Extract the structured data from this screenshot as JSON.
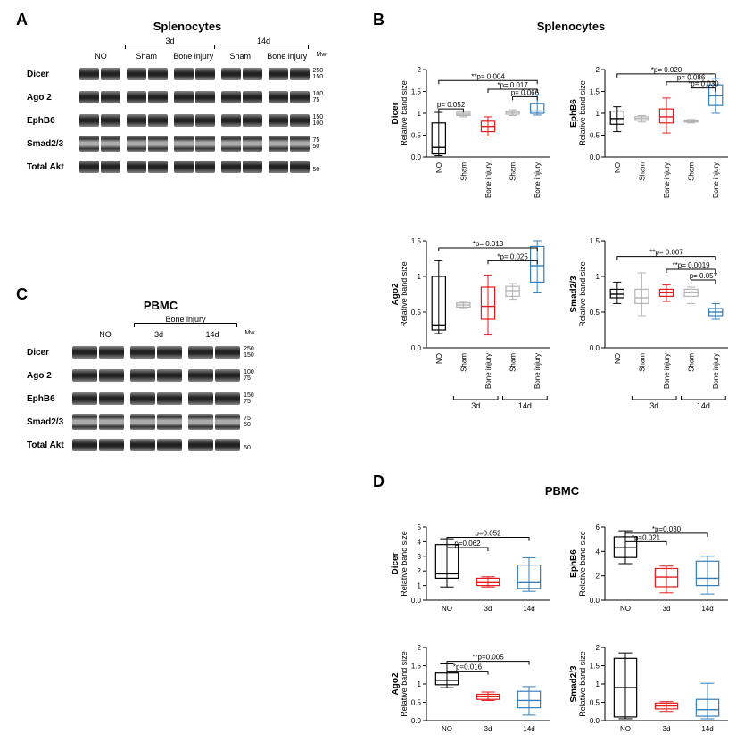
{
  "labels": {
    "A": "A",
    "B": "B",
    "C": "C",
    "D": "D"
  },
  "titles": {
    "splenocytes": "Splenocytes",
    "pbmc": "PBMC"
  },
  "proteins": [
    "Dicer",
    "Ago 2",
    "EphB6",
    "Smad2/3",
    "Total Akt"
  ],
  "panelA": {
    "topGroups": [
      "3d",
      "14d"
    ],
    "cols": [
      "NO",
      "Sham",
      "Bone injury",
      "Sham",
      "Bone injury"
    ],
    "mwLabel": "Mw",
    "mw": [
      [
        "250",
        "150"
      ],
      [
        "100",
        "75"
      ],
      [
        "150",
        "100"
      ],
      [
        "75",
        "50"
      ],
      [
        "",
        "50"
      ]
    ]
  },
  "panelC": {
    "title_sub": "Bone injury",
    "cols": [
      "NO",
      "3d",
      "14d"
    ],
    "mwLabel": "Mw",
    "mw": [
      [
        "250",
        "150"
      ],
      [
        "100",
        "75"
      ],
      [
        "150",
        "75"
      ],
      [
        "75",
        "50"
      ],
      [
        "",
        "50"
      ]
    ]
  },
  "colors": {
    "NO": "#000000",
    "Sham": "#b3b3b3",
    "Bone3d": "#e41a1c",
    "Bone14d": "#377eb8",
    "D_NO": "#000000",
    "D_3d": "#e41a1c",
    "D_14d": "#377eb8"
  },
  "panelB": {
    "xCats": [
      "NO",
      "Sham",
      "Bone injury",
      "Sham",
      "Bone injury"
    ],
    "xGroups": [
      "3d",
      "14d"
    ],
    "charts": {
      "Dicer": {
        "ylabel": "Dicer",
        "ysub": "Relative band size",
        "ylim": [
          0,
          2.0
        ],
        "yticks": [
          0,
          0.5,
          1.0,
          1.5,
          2.0
        ],
        "boxes": [
          {
            "min": 0.03,
            "q1": 0.07,
            "med": 0.22,
            "q3": 0.78,
            "max": 1.02,
            "col": "NO"
          },
          {
            "min": 0.92,
            "q1": 0.95,
            "med": 0.98,
            "q3": 1.02,
            "max": 1.02,
            "col": "Sham"
          },
          {
            "min": 0.48,
            "q1": 0.58,
            "med": 0.7,
            "q3": 0.82,
            "max": 0.92,
            "col": "Bone3d"
          },
          {
            "min": 0.95,
            "q1": 0.98,
            "med": 1.02,
            "q3": 1.05,
            "max": 1.08,
            "col": "Sham"
          },
          {
            "min": 0.96,
            "q1": 1.0,
            "med": 1.05,
            "q3": 1.22,
            "max": 1.42,
            "col": "Bone14d"
          }
        ],
        "sig": [
          {
            "i1": 0,
            "i2": 1,
            "y": 1.1,
            "text": "p= 0.052"
          },
          {
            "i1": 2,
            "i2": 4,
            "y": 1.55,
            "text": "*p= 0.017"
          },
          {
            "i1": 0,
            "i2": 4,
            "y": 1.75,
            "text": "**p= 0.004"
          },
          {
            "i1": 3,
            "i2": 4,
            "y": 1.38,
            "text": "p= 0.066"
          }
        ]
      },
      "EphB6": {
        "ylabel": "EphB6",
        "ysub": "Relative band size",
        "ylim": [
          0,
          2.0
        ],
        "yticks": [
          0,
          0.5,
          1.0,
          1.5,
          2.0
        ],
        "boxes": [
          {
            "min": 0.58,
            "q1": 0.75,
            "med": 0.88,
            "q3": 1.05,
            "max": 1.15,
            "col": "NO"
          },
          {
            "min": 0.8,
            "q1": 0.84,
            "med": 0.88,
            "q3": 0.92,
            "max": 0.95,
            "col": "Sham"
          },
          {
            "min": 0.55,
            "q1": 0.78,
            "med": 0.92,
            "q3": 1.1,
            "max": 1.35,
            "col": "Bone3d"
          },
          {
            "min": 0.78,
            "q1": 0.8,
            "med": 0.82,
            "q3": 0.84,
            "max": 0.86,
            "col": "Sham"
          },
          {
            "min": 1.0,
            "q1": 1.18,
            "med": 1.4,
            "q3": 1.65,
            "max": 1.8,
            "col": "Bone14d"
          }
        ],
        "sig": [
          {
            "i1": 3,
            "i2": 4,
            "y": 1.58,
            "text": "*p= 0.030"
          },
          {
            "i1": 2,
            "i2": 4,
            "y": 1.72,
            "text": "p= 0.086"
          },
          {
            "i1": 0,
            "i2": 4,
            "y": 1.9,
            "text": "*p= 0.020"
          }
        ]
      },
      "Ago2": {
        "ylabel": "Ago2",
        "ysub": "Relative band size",
        "ylim": [
          0,
          1.5
        ],
        "yticks": [
          0,
          0.5,
          1.0,
          1.5
        ],
        "boxes": [
          {
            "min": 0.2,
            "q1": 0.25,
            "med": 0.32,
            "q3": 1.0,
            "max": 1.22,
            "col": "NO"
          },
          {
            "min": 0.55,
            "q1": 0.57,
            "med": 0.6,
            "q3": 0.63,
            "max": 0.65,
            "col": "Sham"
          },
          {
            "min": 0.18,
            "q1": 0.4,
            "med": 0.58,
            "q3": 0.85,
            "max": 1.02,
            "col": "Bone3d"
          },
          {
            "min": 0.68,
            "q1": 0.72,
            "med": 0.8,
            "q3": 0.86,
            "max": 0.9,
            "col": "Sham"
          },
          {
            "min": 0.78,
            "q1": 0.92,
            "med": 1.15,
            "q3": 1.42,
            "max": 1.5,
            "col": "Bone14d"
          }
        ],
        "sig": [
          {
            "i1": 2,
            "i2": 4,
            "y": 1.22,
            "text": "*p= 0.025"
          },
          {
            "i1": 0,
            "i2": 4,
            "y": 1.4,
            "text": "*p= 0.013"
          }
        ]
      },
      "Smad23": {
        "ylabel": "Smad2/3",
        "ysub": "Relative band size",
        "ylim": [
          0,
          1.5
        ],
        "yticks": [
          0,
          0.5,
          1.0,
          1.5
        ],
        "boxes": [
          {
            "min": 0.62,
            "q1": 0.7,
            "med": 0.75,
            "q3": 0.82,
            "max": 0.92,
            "col": "NO"
          },
          {
            "min": 0.45,
            "q1": 0.62,
            "med": 0.7,
            "q3": 0.82,
            "max": 1.05,
            "col": "Sham"
          },
          {
            "min": 0.65,
            "q1": 0.72,
            "med": 0.78,
            "q3": 0.82,
            "max": 0.88,
            "col": "Bone3d"
          },
          {
            "min": 0.62,
            "q1": 0.72,
            "med": 0.78,
            "q3": 0.82,
            "max": 0.85,
            "col": "Sham"
          },
          {
            "min": 0.4,
            "q1": 0.45,
            "med": 0.5,
            "q3": 0.55,
            "max": 0.62,
            "col": "Bone14d"
          }
        ],
        "sig": [
          {
            "i1": 3,
            "i2": 4,
            "y": 0.95,
            "text": "p= 0.057"
          },
          {
            "i1": 2,
            "i2": 4,
            "y": 1.1,
            "text": "**p= 0.0019"
          },
          {
            "i1": 0,
            "i2": 4,
            "y": 1.28,
            "text": "**p= 0.007"
          }
        ]
      }
    }
  },
  "panelD": {
    "xCats": [
      "NO",
      "3d",
      "14d"
    ],
    "charts": {
      "Dicer": {
        "ylabel": "Dicer",
        "ysub": "Relative band size",
        "ylim": [
          0,
          5
        ],
        "yticks": [
          0,
          1,
          2,
          3,
          4,
          5
        ],
        "boxes": [
          {
            "min": 0.9,
            "q1": 1.5,
            "med": 1.8,
            "q3": 3.8,
            "max": 4.2,
            "col": "D_NO"
          },
          {
            "min": 0.9,
            "q1": 1.0,
            "med": 1.2,
            "q3": 1.5,
            "max": 1.6,
            "col": "D_3d"
          },
          {
            "min": 0.6,
            "q1": 0.8,
            "med": 1.2,
            "q3": 2.4,
            "max": 2.9,
            "col": "D_14d"
          }
        ],
        "sig": [
          {
            "i1": 0,
            "i2": 1,
            "y": 3.6,
            "text": "p=0.062"
          },
          {
            "i1": 0,
            "i2": 2,
            "y": 4.3,
            "text": "p=0.052"
          }
        ]
      },
      "EphB6": {
        "ylabel": "EphB6",
        "ysub": "Relative band size",
        "ylim": [
          0,
          6
        ],
        "yticks": [
          0,
          2,
          4,
          6
        ],
        "boxes": [
          {
            "min": 3.0,
            "q1": 3.5,
            "med": 4.3,
            "q3": 5.2,
            "max": 5.7,
            "col": "D_NO"
          },
          {
            "min": 0.6,
            "q1": 1.1,
            "med": 1.9,
            "q3": 2.6,
            "max": 2.8,
            "col": "D_3d"
          },
          {
            "min": 0.5,
            "q1": 1.2,
            "med": 1.8,
            "q3": 3.2,
            "max": 3.6,
            "col": "D_14d"
          }
        ],
        "sig": [
          {
            "i1": 0,
            "i2": 1,
            "y": 4.8,
            "text": "*p=0.021"
          },
          {
            "i1": 0,
            "i2": 2,
            "y": 5.5,
            "text": "*p=0.030"
          }
        ]
      },
      "Ago2": {
        "ylabel": "Ago2",
        "ysub": "Relative band size",
        "ylim": [
          0,
          2.0
        ],
        "yticks": [
          0,
          0.5,
          1.0,
          1.5,
          2.0
        ],
        "boxes": [
          {
            "min": 0.9,
            "q1": 0.98,
            "med": 1.1,
            "q3": 1.3,
            "max": 1.55,
            "col": "D_NO"
          },
          {
            "min": 0.55,
            "q1": 0.58,
            "med": 0.65,
            "q3": 0.72,
            "max": 0.78,
            "col": "D_3d"
          },
          {
            "min": 0.15,
            "q1": 0.35,
            "med": 0.55,
            "q3": 0.8,
            "max": 0.93,
            "col": "D_14d"
          }
        ],
        "sig": [
          {
            "i1": 0,
            "i2": 1,
            "y": 1.35,
            "text": "*p=0.016"
          },
          {
            "i1": 0,
            "i2": 2,
            "y": 1.62,
            "text": "**p=0.005"
          }
        ]
      },
      "Smad23": {
        "ylabel": "Smad2/3",
        "ysub": "Relative band size",
        "ylim": [
          0,
          2.0
        ],
        "yticks": [
          0,
          0.5,
          1.0,
          1.5,
          2.0
        ],
        "boxes": [
          {
            "min": 0.05,
            "q1": 0.1,
            "med": 0.9,
            "q3": 1.7,
            "max": 1.85,
            "col": "D_NO"
          },
          {
            "min": 0.25,
            "q1": 0.32,
            "med": 0.4,
            "q3": 0.48,
            "max": 0.52,
            "col": "D_3d"
          },
          {
            "min": 0.05,
            "q1": 0.12,
            "med": 0.3,
            "q3": 0.58,
            "max": 1.02,
            "col": "D_14d"
          }
        ],
        "sig": []
      }
    }
  }
}
